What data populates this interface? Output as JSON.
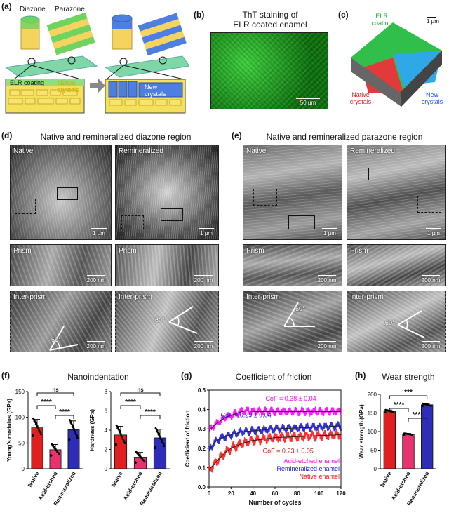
{
  "panels": {
    "a": {
      "label": "(a)",
      "diazone": "Diazone",
      "parazone": "Parazone",
      "elr_coating": "ELR coating",
      "native_crystals": "Native crystals",
      "new_crystals": "New crystals"
    },
    "b": {
      "label": "(b)",
      "title_line1": "ThT staining of",
      "title_line2": "ELR coated enamel",
      "scale": "50 µm"
    },
    "c": {
      "label": "(c)",
      "elr": "ELR coating",
      "native": "Native crystals",
      "new": "New crystals",
      "scale": "1 µm"
    },
    "d": {
      "label": "(d)",
      "title": "Native and remineralized diazone region",
      "native": "Native",
      "remineralized": "Remineralized",
      "prism": "Prism",
      "inter_prism": "Inter-prism",
      "scale_um": "1 µm",
      "scale_nm": "200 nm",
      "angle": "60°"
    },
    "e": {
      "label": "(e)",
      "title": "Native and remineralized parazone region",
      "native": "Native",
      "remineralized": "Remineralized",
      "prism": "Prism",
      "inter_prism": "Inter-prism",
      "scale_um": "1 µm",
      "scale_nm": "200 nm",
      "angle": "60°"
    },
    "f": {
      "label": "(f)",
      "title": "Nanoindentation"
    },
    "g": {
      "label": "(g)",
      "title": "Coefficient of friction"
    },
    "h": {
      "label": "(h)",
      "title": "Wear strength"
    }
  },
  "chart_data": [
    {
      "type": "bar",
      "id": "youngs-modulus",
      "categories": [
        "Native",
        "Acid-etched",
        "Remineralized"
      ],
      "values": [
        81,
        37,
        76
      ],
      "errors": [
        15,
        10,
        17
      ],
      "ylabel": "Young's modulus (GPa)",
      "ylim": [
        0,
        150
      ],
      "yticks": [
        0,
        50,
        100,
        150
      ],
      "colors": [
        "#e02020",
        "#e8336e",
        "#2d2db8"
      ],
      "significance": [
        {
          "pair": [
            "Native",
            "Acid-etched"
          ],
          "label": "****"
        },
        {
          "pair": [
            "Acid-etched",
            "Remineralized"
          ],
          "label": "****"
        },
        {
          "pair": [
            "Native",
            "Remineralized"
          ],
          "label": "ns"
        }
      ]
    },
    {
      "type": "bar",
      "id": "hardness",
      "categories": [
        "Native",
        "Acid-etched",
        "Remineralized"
      ],
      "values": [
        3.5,
        1.2,
        3.2
      ],
      "errors": [
        0.9,
        0.5,
        0.9
      ],
      "ylabel": "Hardness (GPa)",
      "ylim": [
        0,
        8
      ],
      "yticks": [
        0,
        2,
        4,
        6,
        8
      ],
      "colors": [
        "#e02020",
        "#e8336e",
        "#2d2db8"
      ],
      "significance": [
        {
          "pair": [
            "Native",
            "Acid-etched"
          ],
          "label": "****"
        },
        {
          "pair": [
            "Acid-etched",
            "Remineralized"
          ],
          "label": "****"
        },
        {
          "pair": [
            "Native",
            "Remineralized"
          ],
          "label": "ns"
        }
      ]
    },
    {
      "type": "line",
      "id": "coefficient-of-friction",
      "xlabel": "Number of cycles",
      "ylabel": "Coefficient of friction",
      "xlim": [
        0,
        120
      ],
      "ylim": [
        0,
        0.5
      ],
      "xticks": [
        0,
        20,
        40,
        60,
        80,
        100,
        120
      ],
      "yticks": [
        0.0,
        0.1,
        0.2,
        0.3,
        0.4,
        0.5
      ],
      "series": [
        {
          "name": "Acid-etched enamel",
          "color": "#ff00ff",
          "x": [
            0,
            5,
            10,
            15,
            20,
            25,
            30,
            35,
            40,
            60,
            80,
            100,
            120
          ],
          "y": [
            0.29,
            0.32,
            0.34,
            0.36,
            0.37,
            0.38,
            0.39,
            0.395,
            0.39,
            0.39,
            0.39,
            0.39,
            0.39
          ],
          "spread": 0.025
        },
        {
          "name": "Remineralized enamel",
          "color": "#1a1adb",
          "x": [
            0,
            5,
            10,
            15,
            20,
            30,
            40,
            60,
            80,
            100,
            120
          ],
          "y": [
            0.19,
            0.23,
            0.25,
            0.26,
            0.27,
            0.285,
            0.29,
            0.3,
            0.305,
            0.31,
            0.315
          ],
          "spread": 0.025
        },
        {
          "name": "Native enamel",
          "color": "#ff1a1a",
          "x": [
            0,
            5,
            10,
            15,
            20,
            30,
            40,
            60,
            80,
            100,
            120
          ],
          "y": [
            0.09,
            0.12,
            0.15,
            0.18,
            0.2,
            0.225,
            0.24,
            0.255,
            0.26,
            0.265,
            0.27
          ],
          "spread": 0.03
        }
      ],
      "annotations": [
        {
          "text": "CoF = 0.38 ± 0.04",
          "color": "#ff00ff"
        },
        {
          "text": "CoF = 0.29 ± 0.04",
          "color": "#1a1adb"
        },
        {
          "text": "CoF = 0.23 ± 0.05",
          "color": "#d01a1a"
        }
      ]
    },
    {
      "type": "bar",
      "id": "wear-strength",
      "categories": [
        "Native",
        "Acid-etched",
        "Remineralized"
      ],
      "values": [
        155,
        93,
        172
      ],
      "errors": [
        3,
        2,
        3
      ],
      "ylabel": "Wear strength (GPa)",
      "ylim": [
        0,
        200
      ],
      "yticks": [
        0,
        50,
        100,
        150,
        200
      ],
      "colors": [
        "#e02020",
        "#e8336e",
        "#2d2db8"
      ],
      "significance": [
        {
          "pair": [
            "Native",
            "Acid-etched"
          ],
          "label": "****"
        },
        {
          "pair": [
            "Acid-etched",
            "Remineralized"
          ],
          "label": "****"
        },
        {
          "pair": [
            "Native",
            "Remineralized"
          ],
          "label": "***"
        }
      ]
    }
  ]
}
